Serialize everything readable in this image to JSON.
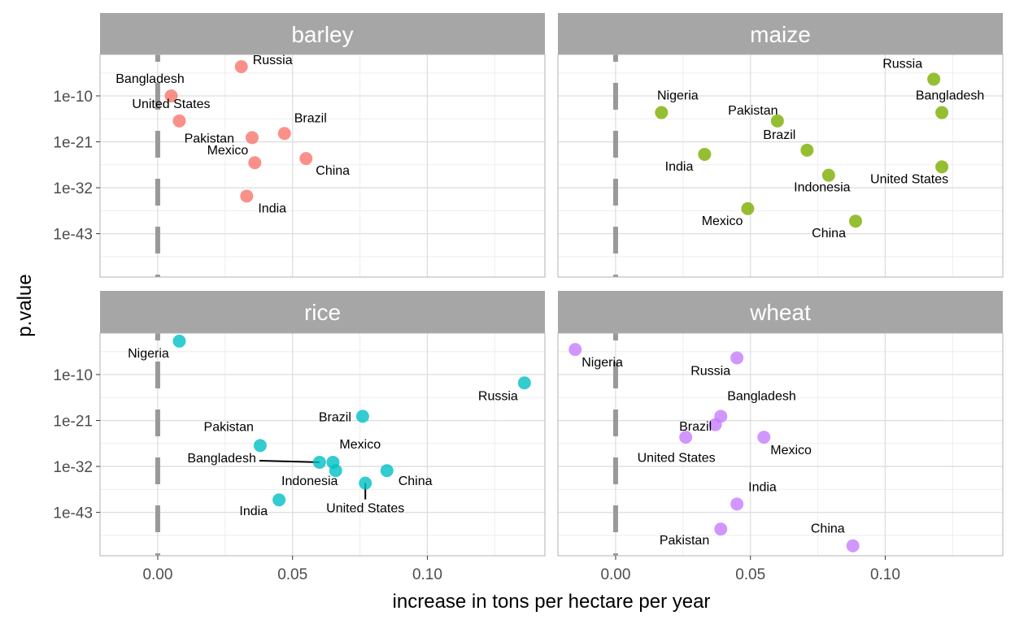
{
  "chart_data": {
    "type": "scatter",
    "xlabel": "increase in tons per hectare per year",
    "ylabel": "p.value",
    "x_ticks": [
      "0.00",
      "0.05",
      "0.10"
    ],
    "y_ticks": [
      "1e-10",
      "1e-21",
      "1e-32",
      "1e-43"
    ],
    "y_scale": "log10 reversed",
    "grid": true,
    "reference_line": {
      "x": 0,
      "style": "dashed",
      "color": "#999999"
    },
    "colors": {
      "barley": "#F8766D",
      "maize": "#7CAE00",
      "rice": "#00BFC4",
      "wheat": "#C77CFF",
      "strip": "#A6A6A6"
    },
    "panels": [
      {
        "name": "barley",
        "points": [
          {
            "label": "Russia",
            "x": 0.031,
            "y": 0.001
          },
          {
            "label": "Bangladesh",
            "x": 0.005,
            "y": 1e-10
          },
          {
            "label": "Brazil",
            "x": 0.047,
            "y": 1e-19
          },
          {
            "label": "Pakistan",
            "x": 0.035,
            "y": 1e-20
          },
          {
            "label": "Mexico",
            "x": 0.036,
            "y": 1e-26
          },
          {
            "label": "China",
            "x": 0.055,
            "y": 1e-25
          },
          {
            "label": "India",
            "x": 0.033,
            "y": 1e-34
          },
          {
            "label": "United States",
            "x": 0.008,
            "y": 1e-16
          }
        ]
      },
      {
        "name": "maize",
        "points": [
          {
            "label": "Russia",
            "x": 0.118,
            "y": 1e-06
          },
          {
            "label": "Bangladesh",
            "x": 0.121,
            "y": 1e-14
          },
          {
            "label": "Nigeria",
            "x": 0.017,
            "y": 1e-14
          },
          {
            "label": "Pakistan",
            "x": 0.06,
            "y": 1e-16
          },
          {
            "label": "Brazil",
            "x": 0.071,
            "y": 1e-23
          },
          {
            "label": "India",
            "x": 0.033,
            "y": 1e-24
          },
          {
            "label": "Indonesia",
            "x": 0.079,
            "y": 1e-29
          },
          {
            "label": "United States",
            "x": 0.121,
            "y": 1e-27
          },
          {
            "label": "Mexico",
            "x": 0.049,
            "y": 1e-37
          },
          {
            "label": "China",
            "x": 0.089,
            "y": 1e-40
          }
        ]
      },
      {
        "name": "rice",
        "points": [
          {
            "label": "Nigeria",
            "x": 0.008,
            "y": 0.01
          },
          {
            "label": "Russia",
            "x": 0.136,
            "y": 1e-12
          },
          {
            "label": "Brazil",
            "x": 0.076,
            "y": 1e-20
          },
          {
            "label": "Pakistan",
            "x": 0.038,
            "y": 1e-27
          },
          {
            "label": "Bangladesh",
            "x": 0.06,
            "y": 1e-31
          },
          {
            "label": "Mexico",
            "x": 0.065,
            "y": 1e-31
          },
          {
            "label": "Indonesia",
            "x": 0.066,
            "y": 1e-33
          },
          {
            "label": "China",
            "x": 0.085,
            "y": 1e-33
          },
          {
            "label": "United States",
            "x": 0.077,
            "y": 1e-36
          },
          {
            "label": "India",
            "x": 0.045,
            "y": 1e-40
          }
        ]
      },
      {
        "name": "wheat",
        "points": [
          {
            "label": "Nigeria",
            "x": -0.015,
            "y": 0.0001
          },
          {
            "label": "Russia",
            "x": 0.045,
            "y": 1e-06
          },
          {
            "label": "Bangladesh",
            "x": 0.039,
            "y": 1e-20
          },
          {
            "label": "Brazil",
            "x": 0.026,
            "y": 1e-25
          },
          {
            "label": "United States",
            "x": 0.037,
            "y": 1e-22
          },
          {
            "label": "Mexico",
            "x": 0.055,
            "y": 1e-25
          },
          {
            "label": "India",
            "x": 0.045,
            "y": 1e-41
          },
          {
            "label": "Pakistan",
            "x": 0.039,
            "y": 1e-47
          },
          {
            "label": "China",
            "x": 0.088,
            "y": 1e-51
          }
        ]
      }
    ]
  }
}
